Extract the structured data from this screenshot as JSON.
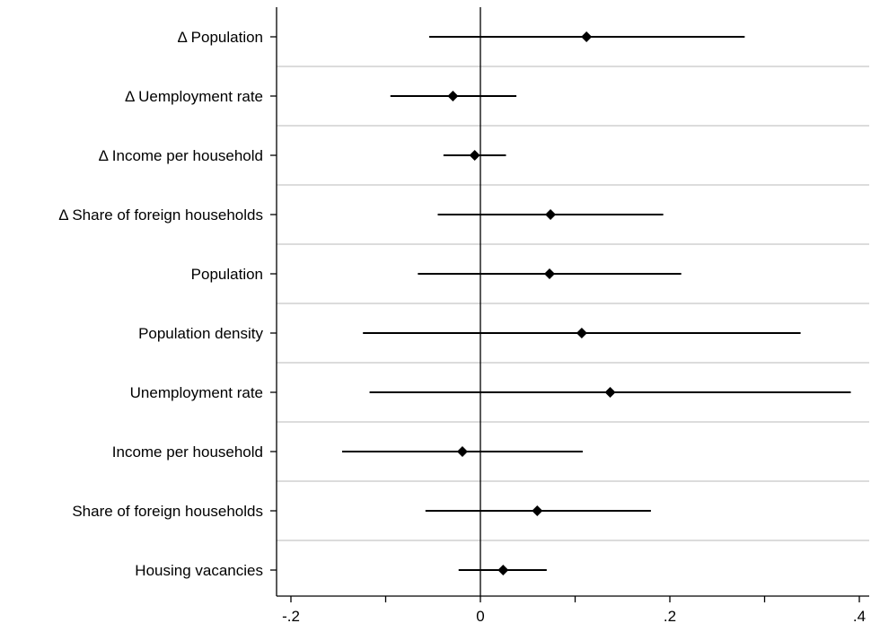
{
  "chart_data": {
    "type": "scatter",
    "subtype": "coefficient-plot",
    "title": "",
    "xlabel": "",
    "ylabel": "",
    "xlim": [
      -0.2,
      0.4
    ],
    "xticks": [
      -0.2,
      -0.1,
      0,
      0.1,
      0.2,
      0.3,
      0.4
    ],
    "xtick_labels": [
      "-.2",
      "",
      "0",
      "",
      ".2",
      "",
      ".4"
    ],
    "reference_line": 0,
    "marker": "diamond",
    "grid": "horizontal separators",
    "legend": "none",
    "categories": [
      "Δ Population",
      "Δ Uemployment rate",
      "Δ Income per household",
      "Δ Share of foreign households",
      "Population",
      "Population density",
      "Unemployment rate",
      "Income per household",
      "Share of foreign households",
      "Housing vacancies"
    ],
    "estimates": [
      0.112,
      -0.029,
      -0.006,
      0.074,
      0.073,
      0.107,
      0.137,
      -0.019,
      0.06,
      0.024
    ],
    "ci_low": [
      -0.054,
      -0.095,
      -0.039,
      -0.045,
      -0.066,
      -0.124,
      -0.117,
      -0.146,
      -0.058,
      -0.023
    ],
    "ci_high": [
      0.279,
      0.038,
      0.027,
      0.193,
      0.212,
      0.338,
      0.391,
      0.108,
      0.18,
      0.07
    ]
  },
  "colors": {
    "background": "#ffffff",
    "axis": "#000000",
    "grid": "#dcdcdc",
    "marker": "#000000"
  }
}
